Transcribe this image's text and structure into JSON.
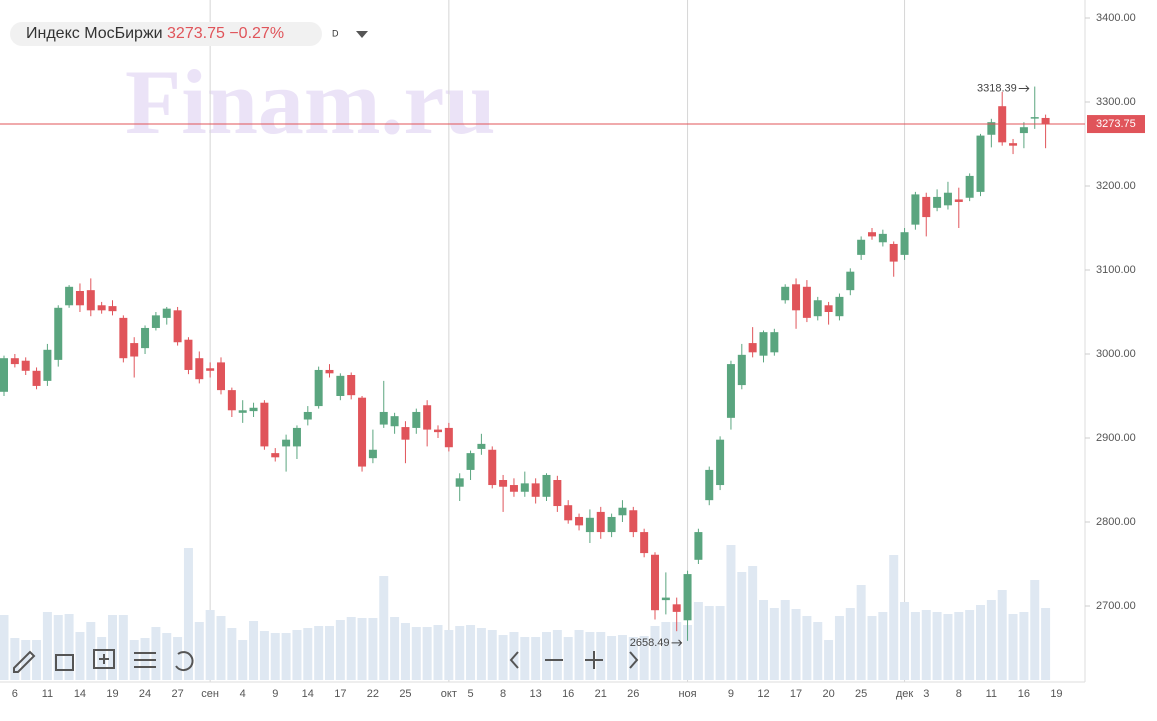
{
  "chart_data": {
    "type": "candlestick",
    "title": "Индекс МосБиржи",
    "change": "−0.27%",
    "interval": "D",
    "watermark": "Finam.ru",
    "categories": [
      null,
      "6",
      null,
      null,
      "11",
      null,
      null,
      "14",
      null,
      null,
      "19",
      null,
      null,
      "24",
      null,
      null,
      "27",
      null,
      null,
      "сен",
      null,
      null,
      "4",
      null,
      null,
      "9",
      null,
      null,
      "14",
      null,
      null,
      "17",
      null,
      null,
      "22",
      null,
      null,
      "25",
      null,
      null,
      null,
      "окт",
      null,
      "5",
      null,
      null,
      "8",
      null,
      null,
      "13",
      null,
      null,
      "16",
      null,
      null,
      "21",
      null,
      null,
      "26",
      null,
      null,
      null,
      null,
      "ноя",
      null,
      null,
      null,
      "9",
      null,
      null,
      "12",
      null,
      null,
      "17",
      null,
      null,
      "20",
      null,
      null,
      "25",
      null,
      null,
      null,
      "дек",
      null,
      "3",
      null,
      null,
      "8",
      null,
      null,
      "11",
      null,
      null,
      "16",
      null,
      null,
      "19"
    ],
    "open": [
      2955,
      2995,
      2992,
      2980,
      2968,
      2993,
      3058,
      3075,
      3076,
      3058,
      3057,
      3043,
      3013,
      3007,
      3031,
      3043,
      3052,
      3017,
      2995,
      2983,
      2990,
      2957,
      2930,
      2932,
      2942,
      2882,
      2890,
      2890,
      2922,
      2938,
      2981,
      2950,
      2975,
      2948,
      2876,
      2916,
      2914,
      2913,
      2912,
      2939,
      2910,
      2912,
      2842,
      2862,
      2887,
      2886,
      2850,
      2844,
      2836,
      2846,
      2830,
      2850,
      2820,
      2806,
      2788,
      2812,
      2788,
      2808,
      2814,
      2788,
      2761,
      2707,
      2702,
      2683,
      2755,
      2826,
      2844,
      2924,
      2963,
      3013,
      2998,
      3002,
      3064,
      3083,
      3080,
      3045,
      3058,
      3045,
      3076,
      3118,
      3145,
      3133,
      3131,
      3118,
      3154,
      3187,
      3174,
      3177,
      3184,
      3186,
      3193,
      3261,
      3295,
      3251,
      3263,
      3281,
      3281,
      null
    ],
    "high": [
      2998,
      3000,
      2996,
      2984,
      3012,
      3058,
      3082,
      3084,
      3090,
      3062,
      3064,
      3046,
      3020,
      3034,
      3050,
      3056,
      3056,
      3020,
      3003,
      2990,
      2996,
      2960,
      2945,
      2942,
      2945,
      2888,
      2904,
      2915,
      2938,
      2985,
      2988,
      2977,
      2978,
      2950,
      2910,
      2968,
      2930,
      2920,
      2935,
      2945,
      2915,
      2918,
      2858,
      2885,
      2905,
      2890,
      2856,
      2852,
      2860,
      2852,
      2858,
      2855,
      2826,
      2810,
      2815,
      2818,
      2810,
      2826,
      2818,
      2792,
      2764,
      2740,
      2710,
      2742,
      2792,
      2866,
      2902,
      2992,
      3012,
      3032,
      3028,
      3030,
      3083,
      3090,
      3088,
      3068,
      3062,
      3072,
      3102,
      3140,
      3150,
      3148,
      3134,
      3150,
      3193,
      3192,
      3196,
      3205,
      3198,
      3215,
      3262,
      3280,
      3312,
      3256,
      3276,
      3318.39,
      3285,
      null
    ],
    "low": [
      2950,
      2984,
      2975,
      2958,
      2962,
      2985,
      3055,
      3050,
      3045,
      3048,
      3046,
      2990,
      2972,
      3000,
      3028,
      3035,
      3010,
      2976,
      2965,
      2972,
      2952,
      2925,
      2918,
      2925,
      2886,
      2872,
      2860,
      2875,
      2915,
      2935,
      2972,
      2945,
      2946,
      2860,
      2870,
      2912,
      2905,
      2870,
      2905,
      2890,
      2900,
      2884,
      2825,
      2850,
      2880,
      2840,
      2812,
      2830,
      2830,
      2822,
      2825,
      2812,
      2798,
      2790,
      2775,
      2780,
      2782,
      2800,
      2782,
      2758,
      2684,
      2690,
      2670,
      2658.49,
      2750,
      2820,
      2838,
      2910,
      2958,
      2996,
      2990,
      2998,
      3060,
      3030,
      3038,
      3040,
      3035,
      3040,
      3070,
      3112,
      3136,
      3128,
      3092,
      3112,
      3148,
      3140,
      3170,
      3172,
      3150,
      3182,
      3188,
      3246,
      3248,
      3238,
      3245,
      3268,
      3245,
      null
    ],
    "close": [
      2995,
      2988,
      2980,
      2962,
      3005,
      3055,
      3080,
      3058,
      3052,
      3052,
      3051,
      2995,
      2997,
      3031,
      3046,
      3054,
      3014,
      2981,
      2970,
      2980,
      2957,
      2933,
      2933,
      2936,
      2890,
      2877,
      2898,
      2912,
      2931,
      2981,
      2977,
      2974,
      2951,
      2866,
      2886,
      2931,
      2926,
      2898,
      2931,
      2910,
      2907,
      2889,
      2852,
      2882,
      2893,
      2844,
      2842,
      2836,
      2846,
      2830,
      2856,
      2819,
      2802,
      2796,
      2805,
      2788,
      2806,
      2817,
      2788,
      2763,
      2695,
      2710,
      2693,
      2738,
      2788,
      2862,
      2898,
      2988,
      2999,
      3002,
      3026,
      3026,
      3080,
      3052,
      3043,
      3064,
      3050,
      3068,
      3098,
      3136,
      3140,
      3143,
      3110,
      3145,
      3190,
      3163,
      3187,
      3192,
      3181,
      3212,
      3260,
      3276,
      3252,
      3248,
      3270,
      3282,
      3273.75,
      null
    ],
    "volume": [
      65,
      42,
      40,
      40,
      68,
      65,
      66,
      48,
      58,
      43,
      65,
      65,
      40,
      42,
      53,
      47,
      43,
      132,
      58,
      70,
      64,
      52,
      40,
      59,
      49,
      47,
      47,
      50,
      52,
      54,
      54,
      60,
      63,
      62,
      62,
      104,
      63,
      57,
      53,
      53,
      55,
      50,
      54,
      55,
      52,
      50,
      45,
      48,
      43,
      43,
      48,
      50,
      43,
      50,
      48,
      48,
      44,
      45,
      43,
      44,
      54,
      58,
      58,
      55,
      78,
      74,
      74,
      135,
      108,
      114,
      80,
      72,
      80,
      71,
      64,
      58,
      40,
      64,
      72,
      95,
      64,
      68,
      125,
      78,
      68,
      70,
      68,
      66,
      68,
      70,
      75,
      80,
      90,
      66,
      68,
      100,
      72,
      null
    ],
    "vlim": [
      0,
      140
    ],
    "ylim": [
      2600,
      3400
    ],
    "yticks": [
      {
        "value": 2700,
        "label": "2700.00"
      },
      {
        "value": 2800,
        "label": "2800.00"
      },
      {
        "value": 2900,
        "label": "2900.00"
      },
      {
        "value": 3000,
        "label": "3000.00"
      },
      {
        "value": 3100,
        "label": "3100.00"
      },
      {
        "value": 3200,
        "label": "3200.00"
      },
      {
        "value": 3300,
        "label": "3300.00"
      },
      {
        "value": 3400,
        "label": "3400.00"
      }
    ],
    "up_color": "#5aa57f",
    "down_color": "#e0545a",
    "volume_color": "#dfe8f2",
    "price_line_color": "#e0545a"
  }
}
